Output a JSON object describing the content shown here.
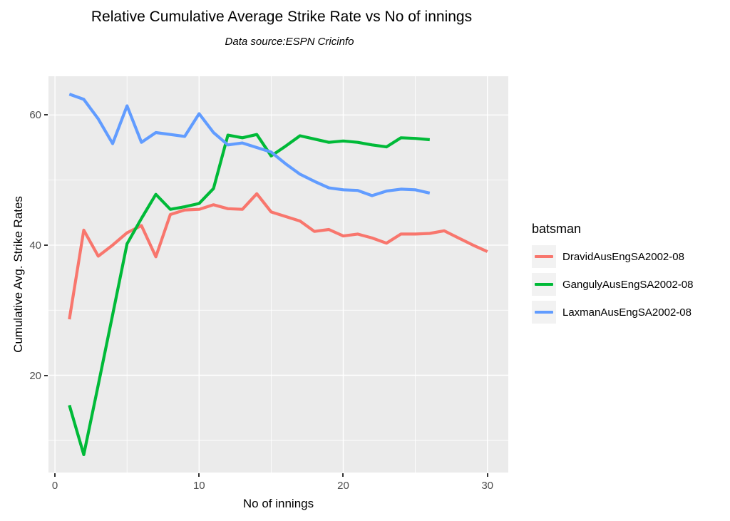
{
  "chart_data": {
    "type": "line",
    "title": "Relative Cumulative Average Strike Rate vs No of innings",
    "subtitle": "Data source:ESPN Cricinfo",
    "xlabel": "No of innings",
    "ylabel": "Cumulative Avg. Strike Rates",
    "x_range": [
      -0.45,
      31.45
    ],
    "y_range": [
      5.05,
      65.95
    ],
    "x_ticks": [
      0,
      10,
      20,
      30
    ],
    "x_minor_ticks": [
      5,
      15,
      25
    ],
    "y_ticks": [
      20,
      40,
      60
    ],
    "y_minor_ticks": [
      10,
      30,
      50
    ],
    "grid": true,
    "panel_bg": "#EBEBEB",
    "grid_color": "#FFFFFF",
    "legend_title": "batsman",
    "legend_position": "right",
    "series": [
      {
        "name": "DravidAusEngSA2002-08",
        "color": "#F8766D",
        "x": [
          1,
          2,
          3,
          4,
          5,
          6,
          7,
          8,
          9,
          10,
          11,
          12,
          13,
          14,
          15,
          16,
          17,
          18,
          19,
          20,
          21,
          22,
          23,
          24,
          25,
          26,
          27,
          28,
          29,
          30
        ],
        "values": [
          28.6,
          42.3,
          38.3,
          40.0,
          41.9,
          43.0,
          38.2,
          44.7,
          45.4,
          45.5,
          46.2,
          45.6,
          45.5,
          47.9,
          45.1,
          44.4,
          43.7,
          42.1,
          42.4,
          41.4,
          41.7,
          41.1,
          40.3,
          41.7,
          41.7,
          41.8,
          42.2,
          41.1,
          40.0,
          39.0
        ]
      },
      {
        "name": "GangulyAusEngSA2002-08",
        "color": "#00BA38",
        "x": [
          1,
          2,
          3,
          4,
          5,
          6,
          7,
          8,
          9,
          10,
          11,
          12,
          13,
          14,
          15,
          16,
          17,
          18,
          19,
          20,
          21,
          22,
          23,
          24,
          25,
          26
        ],
        "values": [
          15.4,
          7.8,
          18.5,
          29.3,
          40.2,
          44.1,
          47.8,
          45.5,
          45.9,
          46.4,
          48.7,
          56.9,
          56.5,
          57.0,
          53.7,
          55.2,
          56.8,
          56.3,
          55.8,
          56.0,
          55.8,
          55.4,
          55.1,
          56.5,
          56.4,
          56.2
        ]
      },
      {
        "name": "LaxmanAusEngSA2002-08",
        "color": "#619CFF",
        "x": [
          1,
          2,
          3,
          4,
          5,
          6,
          7,
          8,
          9,
          10,
          11,
          12,
          13,
          14,
          15,
          16,
          17,
          18,
          19,
          20,
          21,
          22,
          23,
          24,
          25,
          26
        ],
        "values": [
          63.2,
          62.4,
          59.4,
          55.6,
          61.4,
          55.8,
          57.3,
          57.0,
          56.7,
          60.2,
          57.3,
          55.4,
          55.7,
          55.0,
          54.3,
          52.5,
          50.9,
          49.8,
          48.8,
          48.5,
          48.4,
          47.6,
          48.3,
          48.6,
          48.5,
          48.0
        ]
      }
    ],
    "style": {
      "tick_color": "#333333",
      "tick_label_color": "#4D4D4D",
      "line_width": 4.2
    }
  }
}
